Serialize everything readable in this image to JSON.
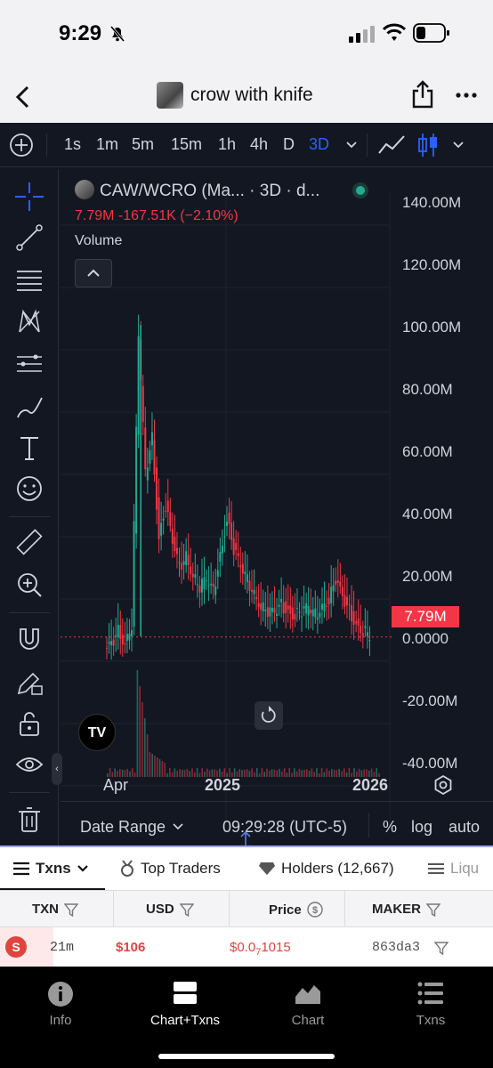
{
  "status": {
    "time": "9:29"
  },
  "nav": {
    "title": "crow with knife"
  },
  "toolbar": {
    "timeframes": [
      "1s",
      "1m",
      "5m",
      "15m",
      "1h",
      "4h",
      "D",
      "3D"
    ],
    "active": "3D"
  },
  "legend": {
    "symbol": "CAW/WCRO (Ma... · 3D · d...",
    "values": "7.79M  -167.51K (−2.10%)",
    "volume": "Volume"
  },
  "chart_data": {
    "type": "candlestick",
    "y_axis_labels": [
      "140.00M",
      "120.00M",
      "100.00M",
      "80.00M",
      "60.00M",
      "40.00M",
      "20.00M",
      "0.0000",
      "-20.00M",
      "-40.00M"
    ],
    "ylim": [
      -40000000,
      140000000
    ],
    "x_tick_labels": [
      "Apr",
      "2025",
      "2026"
    ],
    "last_price_label": "7.79M",
    "approx_series": {
      "name": "",
      "points": [
        [
          0,
          3
        ],
        [
          2,
          5
        ],
        [
          4,
          10
        ],
        [
          6,
          6
        ],
        [
          8,
          12
        ],
        [
          10,
          105
        ],
        [
          12,
          60
        ],
        [
          14,
          72
        ],
        [
          16,
          40
        ],
        [
          18,
          50
        ],
        [
          20,
          38
        ],
        [
          22,
          30
        ],
        [
          24,
          34
        ],
        [
          26,
          28
        ],
        [
          28,
          24
        ],
        [
          30,
          26
        ],
        [
          32,
          22
        ],
        [
          34,
          34
        ],
        [
          36,
          46
        ],
        [
          38,
          36
        ],
        [
          40,
          30
        ],
        [
          42,
          26
        ],
        [
          44,
          22
        ],
        [
          46,
          18
        ],
        [
          48,
          16
        ],
        [
          50,
          15
        ],
        [
          52,
          18
        ],
        [
          54,
          16
        ],
        [
          56,
          15
        ],
        [
          58,
          16
        ],
        [
          60,
          17
        ],
        [
          62,
          15
        ],
        [
          64,
          18
        ],
        [
          66,
          20
        ],
        [
          68,
          26
        ],
        [
          70,
          20
        ],
        [
          72,
          16
        ],
        [
          74,
          12
        ],
        [
          76,
          10
        ],
        [
          78,
          8
        ]
      ]
    }
  },
  "chart_footer": {
    "date_range": "Date Range",
    "clock": "09:29:28 (UTC-5)",
    "pct": "%",
    "log": "log",
    "auto": "auto"
  },
  "tabs": {
    "txns": "Txns",
    "top_traders": "Top Traders",
    "holders": "Holders (12,667)",
    "liquidity": "Liqu"
  },
  "table": {
    "headers": [
      "TXN",
      "USD",
      "Price",
      "MAKER"
    ],
    "row": {
      "type": "S",
      "age": "21m",
      "usd": "$106",
      "price_pre": "$0.0",
      "price_sub": "7",
      "price_post": "1015",
      "maker": "863da3"
    }
  },
  "bottom_nav": {
    "info": "Info",
    "chart_txns": "Chart+Txns",
    "chart": "Chart",
    "txns": "Txns"
  }
}
